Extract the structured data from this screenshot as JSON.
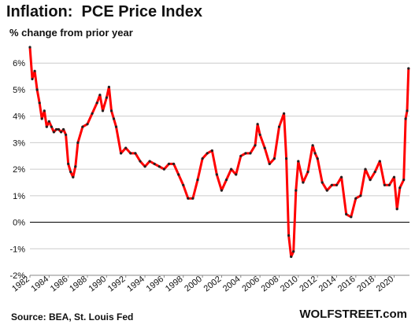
{
  "chart_data": {
    "type": "line",
    "title": "Inflation:  PCE Price Index",
    "subtitle": "% change from prior year",
    "xlabel": "",
    "ylabel": "",
    "xlim": [
      1982.0,
      2021.6
    ],
    "ylim": [
      -2,
      6.6
    ],
    "y_ticks": [
      -2,
      -1,
      0,
      1,
      2,
      3,
      4,
      5,
      6
    ],
    "y_tick_labels": [
      "-2%",
      "-1%",
      "0%",
      "1%",
      "2%",
      "3%",
      "4%",
      "5%",
      "6%"
    ],
    "x_ticks": [
      1982,
      1984,
      1986,
      1988,
      1990,
      1992,
      1994,
      1996,
      1998,
      2000,
      2002,
      2004,
      2006,
      2008,
      2010,
      2012,
      2014,
      2016,
      2018,
      2020
    ],
    "x_tick_labels": [
      "1982",
      "1984",
      "1986",
      "1988",
      "1990",
      "1992",
      "1994",
      "1996",
      "1998",
      "2000",
      "2002",
      "2004",
      "2006",
      "2008",
      "2010",
      "2012",
      "2014",
      "2016",
      "2018",
      "2020"
    ],
    "grid": "horizontal",
    "zero_line": true,
    "line_color": "#ff0000",
    "marker_color": "#222222",
    "series": [
      {
        "x": [
          1982.0,
          1982.25,
          1982.5,
          1982.75,
          1983.0,
          1983.25,
          1983.5,
          1983.75,
          1984.0,
          1984.25,
          1984.5,
          1984.75,
          1985.0,
          1985.25,
          1985.5,
          1985.75,
          1986.0,
          1986.25,
          1986.5,
          1986.75,
          1987.0,
          1987.5,
          1988.0,
          1988.5,
          1989.0,
          1989.3,
          1989.6,
          1990.0,
          1990.25,
          1990.5,
          1990.75,
          1991.0,
          1991.5,
          1992.0,
          1992.5,
          1993.0,
          1993.5,
          1994.0,
          1994.5,
          1995.0,
          1995.5,
          1996.0,
          1996.5,
          1997.0,
          1997.5,
          1998.0,
          1998.5,
          1999.0,
          1999.5,
          2000.0,
          2000.5,
          2001.0,
          2001.5,
          2002.0,
          2002.5,
          2003.0,
          2003.5,
          2004.0,
          2004.5,
          2005.0,
          2005.5,
          2005.75,
          2006.0,
          2006.5,
          2007.0,
          2007.5,
          2008.0,
          2008.5,
          2008.75,
          2009.0,
          2009.25,
          2009.5,
          2009.75,
          2010.0,
          2010.5,
          2011.0,
          2011.5,
          2011.75,
          2012.0,
          2012.5,
          2013.0,
          2013.5,
          2014.0,
          2014.5,
          2015.0,
          2015.5,
          2016.0,
          2016.5,
          2017.0,
          2017.5,
          2018.0,
          2018.5,
          2019.0,
          2019.5,
          2020.0,
          2020.3,
          2020.6,
          2021.0,
          2021.2,
          2021.35,
          2021.5
        ],
        "y": [
          6.6,
          5.4,
          5.7,
          5.0,
          4.5,
          3.9,
          4.2,
          3.6,
          3.8,
          3.6,
          3.4,
          3.5,
          3.5,
          3.4,
          3.5,
          3.3,
          2.2,
          1.9,
          1.7,
          2.1,
          3.0,
          3.6,
          3.7,
          4.1,
          4.5,
          4.8,
          4.2,
          4.7,
          5.1,
          4.2,
          3.9,
          3.6,
          2.6,
          2.8,
          2.6,
          2.6,
          2.3,
          2.1,
          2.3,
          2.2,
          2.1,
          2.0,
          2.2,
          2.2,
          1.8,
          1.4,
          0.9,
          0.9,
          1.6,
          2.4,
          2.6,
          2.7,
          1.8,
          1.2,
          1.6,
          2.0,
          1.8,
          2.5,
          2.6,
          2.6,
          2.9,
          3.7,
          3.3,
          2.8,
          2.2,
          2.4,
          3.6,
          4.1,
          2.4,
          -0.5,
          -1.3,
          -1.1,
          1.2,
          2.3,
          1.5,
          1.9,
          2.9,
          2.6,
          2.4,
          1.5,
          1.2,
          1.4,
          1.4,
          1.7,
          0.3,
          0.2,
          0.9,
          1.0,
          2.0,
          1.6,
          1.9,
          2.3,
          1.4,
          1.4,
          1.7,
          0.5,
          1.3,
          1.6,
          3.9,
          4.2,
          5.8
        ]
      }
    ]
  },
  "footer": {
    "source": "Source: BEA, St. Louis Fed",
    "brand": "WOLFSTREET.com"
  }
}
